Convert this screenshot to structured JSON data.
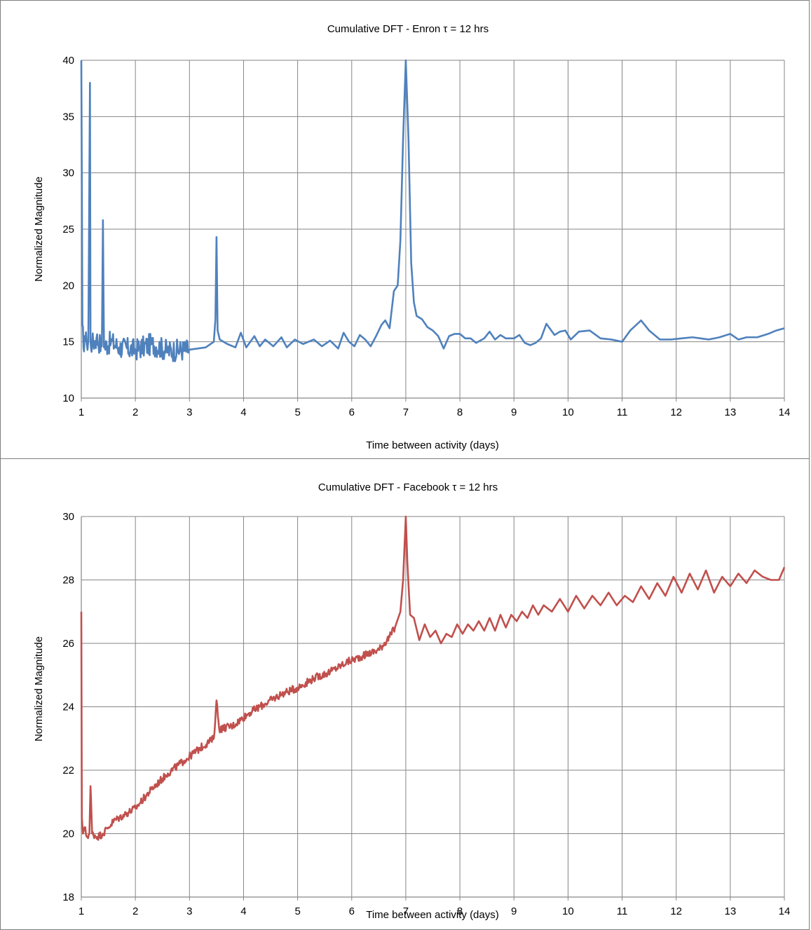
{
  "colors": {
    "enron": "#4f81bd",
    "facebook": "#c0504d",
    "grid": "#868686",
    "frame": "#7f7f7f"
  },
  "chart_data": [
    {
      "type": "line",
      "title": "Cumulative DFT  - Enron  τ = 12 hrs",
      "xlabel": "Time between activity (days)",
      "ylabel": "Normalized Magnitude",
      "xlim": [
        1,
        14
      ],
      "ylim": [
        10,
        40
      ],
      "xticks": [
        "1",
        "2",
        "3",
        "4",
        "5",
        "6",
        "7",
        "8",
        "9",
        "10",
        "11",
        "12",
        "13",
        "14"
      ],
      "yticks": [
        "10",
        "15",
        "20",
        "25",
        "30",
        "35",
        "40"
      ],
      "grid": true,
      "legend": "none",
      "series": [
        {
          "color": "#4f81bd",
          "noise_region": {
            "x_start": 1.0,
            "x_end": 3.0,
            "level": 14.5,
            "amplitude": 1.0
          },
          "x": [
            1.0,
            1.02,
            1.04,
            1.06,
            1.1,
            1.13,
            1.16,
            1.17,
            1.2,
            1.28,
            1.38,
            1.4,
            1.42,
            1.55,
            1.7,
            2.0,
            2.3,
            2.6,
            3.0,
            3.3,
            3.45,
            3.48,
            3.5,
            3.52,
            3.56,
            3.7,
            3.85,
            3.95,
            4.05,
            4.2,
            4.3,
            4.4,
            4.55,
            4.7,
            4.8,
            4.95,
            5.1,
            5.3,
            5.45,
            5.6,
            5.75,
            5.85,
            5.95,
            6.05,
            6.15,
            6.25,
            6.35,
            6.45,
            6.55,
            6.62,
            6.7,
            6.78,
            6.85,
            6.9,
            6.95,
            7.0,
            7.05,
            7.1,
            7.15,
            7.2,
            7.3,
            7.4,
            7.5,
            7.6,
            7.7,
            7.8,
            7.9,
            8.0,
            8.1,
            8.2,
            8.3,
            8.45,
            8.55,
            8.65,
            8.75,
            8.85,
            9.0,
            9.1,
            9.2,
            9.3,
            9.4,
            9.5,
            9.6,
            9.75,
            9.85,
            9.95,
            10.05,
            10.2,
            10.4,
            10.6,
            10.8,
            11.0,
            11.15,
            11.35,
            11.5,
            11.7,
            11.9,
            12.1,
            12.3,
            12.45,
            12.6,
            12.8,
            13.0,
            13.15,
            13.3,
            13.5,
            13.7,
            13.85,
            14.0
          ],
          "y": [
            40.0,
            16.5,
            14.5,
            15.5,
            14.8,
            15.2,
            38.0,
            15.0,
            14.8,
            15.3,
            14.6,
            25.8,
            14.5,
            15.0,
            14.5,
            14.3,
            14.8,
            14.2,
            14.3,
            14.5,
            15.0,
            17.0,
            24.3,
            16.0,
            15.2,
            14.8,
            14.5,
            15.8,
            14.5,
            15.5,
            14.6,
            15.2,
            14.6,
            15.4,
            14.5,
            15.2,
            14.8,
            15.2,
            14.6,
            15.1,
            14.4,
            15.8,
            15.0,
            14.6,
            15.6,
            15.2,
            14.6,
            15.5,
            16.5,
            16.9,
            16.2,
            19.5,
            20.0,
            24.0,
            33.0,
            40.0,
            33.0,
            22.0,
            18.5,
            17.3,
            17.0,
            16.3,
            16.0,
            15.5,
            14.4,
            15.5,
            15.7,
            15.7,
            15.3,
            15.3,
            14.9,
            15.3,
            15.9,
            15.2,
            15.6,
            15.3,
            15.3,
            15.6,
            14.9,
            14.7,
            14.9,
            15.3,
            16.6,
            15.6,
            15.9,
            16.0,
            15.2,
            15.9,
            16.0,
            15.3,
            15.2,
            15.0,
            16.0,
            16.9,
            16.0,
            15.2,
            15.2,
            15.3,
            15.4,
            15.3,
            15.2,
            15.4,
            15.7,
            15.2,
            15.4,
            15.4,
            15.7,
            16.0,
            16.2
          ]
        }
      ]
    },
    {
      "type": "line",
      "title": "Cumulative DFT - Facebook τ = 12 hrs",
      "xlabel": "Time between activity (days)",
      "ylabel": "Normalized Magnitude",
      "xlim": [
        1,
        14
      ],
      "ylim": [
        18,
        30
      ],
      "xticks": [
        "1",
        "2",
        "3",
        "4",
        "5",
        "6",
        "7",
        "8",
        "9",
        "10",
        "11",
        "12",
        "13",
        "14"
      ],
      "yticks": [
        "18",
        "20",
        "22",
        "24",
        "26",
        "28",
        "30"
      ],
      "grid": true,
      "legend": "none",
      "series": [
        {
          "color": "#c0504d",
          "noise_region": {
            "x_start": 1.05,
            "x_end": 6.8,
            "amplitude": 0.12
          },
          "x": [
            1.0,
            1.01,
            1.03,
            1.06,
            1.1,
            1.15,
            1.17,
            1.2,
            1.3,
            1.4,
            1.5,
            1.6,
            1.8,
            2.0,
            2.3,
            2.6,
            2.9,
            3.2,
            3.45,
            3.5,
            3.55,
            3.8,
            4.1,
            4.4,
            4.7,
            5.0,
            5.3,
            5.6,
            5.9,
            6.2,
            6.5,
            6.7,
            6.8,
            6.9,
            6.95,
            7.0,
            7.03,
            7.08,
            7.15,
            7.25,
            7.35,
            7.45,
            7.55,
            7.65,
            7.75,
            7.85,
            7.95,
            8.05,
            8.15,
            8.25,
            8.35,
            8.45,
            8.55,
            8.65,
            8.75,
            8.85,
            8.95,
            9.05,
            9.15,
            9.25,
            9.35,
            9.45,
            9.55,
            9.7,
            9.85,
            10.0,
            10.15,
            10.3,
            10.45,
            10.6,
            10.75,
            10.9,
            11.05,
            11.2,
            11.35,
            11.5,
            11.65,
            11.8,
            11.95,
            12.1,
            12.25,
            12.4,
            12.55,
            12.7,
            12.85,
            13.0,
            13.15,
            13.3,
            13.45,
            13.6,
            13.75,
            13.9,
            14.0
          ],
          "y": [
            27.0,
            20.5,
            20.0,
            20.2,
            19.9,
            20.0,
            21.5,
            20.0,
            19.9,
            20.0,
            20.2,
            20.4,
            20.6,
            20.8,
            21.4,
            21.9,
            22.3,
            22.7,
            23.0,
            24.2,
            23.3,
            23.4,
            23.8,
            24.1,
            24.4,
            24.6,
            24.9,
            25.1,
            25.4,
            25.6,
            25.8,
            26.2,
            26.5,
            27.0,
            28.0,
            30.0,
            28.5,
            26.9,
            26.8,
            26.1,
            26.6,
            26.2,
            26.4,
            26.0,
            26.3,
            26.2,
            26.6,
            26.3,
            26.6,
            26.4,
            26.7,
            26.4,
            26.8,
            26.4,
            26.9,
            26.5,
            26.9,
            26.7,
            27.0,
            26.8,
            27.2,
            26.9,
            27.2,
            27.0,
            27.4,
            27.0,
            27.5,
            27.1,
            27.5,
            27.2,
            27.6,
            27.2,
            27.5,
            27.3,
            27.8,
            27.4,
            27.9,
            27.5,
            28.1,
            27.6,
            28.2,
            27.7,
            28.3,
            27.6,
            28.1,
            27.8,
            28.2,
            27.9,
            28.3,
            28.1,
            28.0,
            28.0,
            28.4
          ]
        }
      ]
    }
  ]
}
